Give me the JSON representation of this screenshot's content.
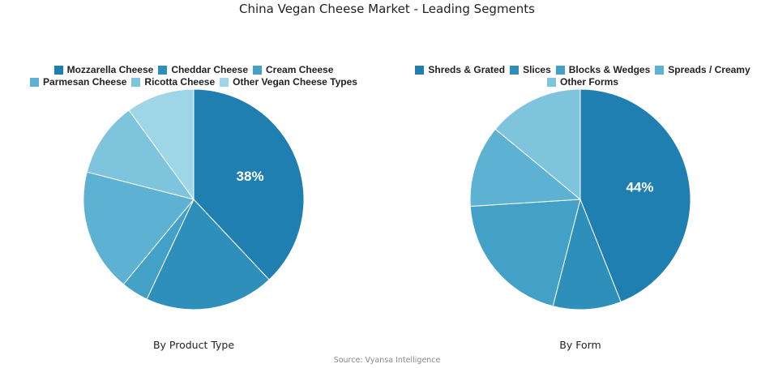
{
  "title": "China Vegan Cheese Market - Leading Segments",
  "source": "Source: Vyansa Intelligence",
  "chart_data": [
    {
      "type": "pie",
      "subtitle": "By Product Type",
      "legend_position": "top",
      "start_angle_deg": 0,
      "direction": "clockwise",
      "labels": [
        "Mozzarella Cheese",
        "Cheddar Cheese",
        "Cream Cheese",
        "Parmesan Cheese",
        "Ricotta Cheese",
        "Other Vegan Cheese Types"
      ],
      "values": [
        38,
        19,
        4,
        18,
        11,
        10
      ],
      "colors": [
        "#1f7fb0",
        "#2f8fbb",
        "#43a0c7",
        "#5db1d2",
        "#7ec4dd",
        "#9fd6e7"
      ],
      "value_labels": [
        "38%",
        "",
        "",
        "",
        "",
        ""
      ]
    },
    {
      "type": "pie",
      "subtitle": "By Form",
      "legend_position": "top",
      "start_angle_deg": 0,
      "direction": "clockwise",
      "labels": [
        "Shreds & Grated",
        "Slices",
        "Blocks & Wedges",
        "Spreads / Creamy",
        "Other Forms"
      ],
      "values": [
        44,
        10,
        20,
        12,
        14
      ],
      "colors": [
        "#1f7fb0",
        "#2f8fbb",
        "#43a0c7",
        "#5db1d2",
        "#7ec4dd"
      ],
      "value_labels": [
        "44%",
        "",
        "",
        "",
        ""
      ]
    }
  ]
}
